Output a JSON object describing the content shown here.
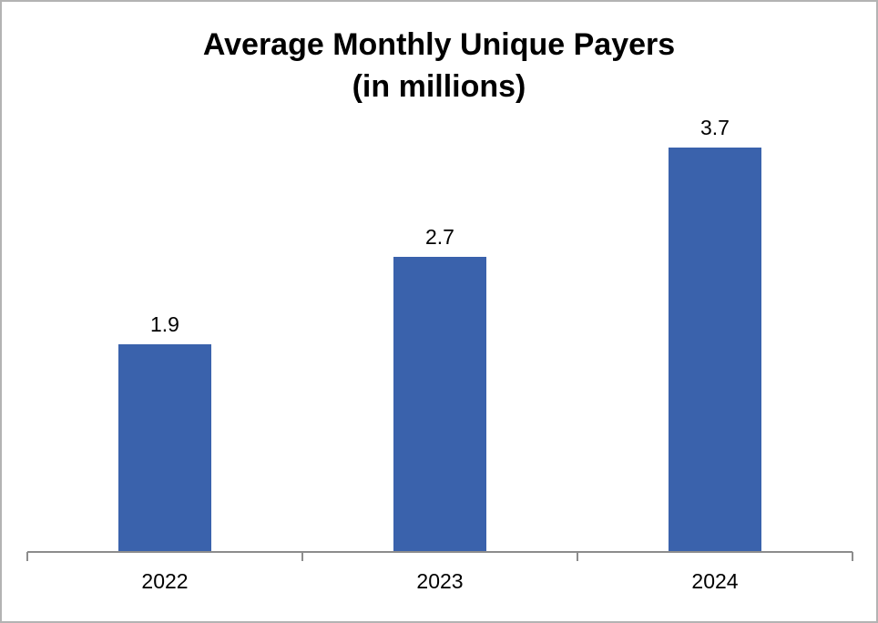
{
  "chart_data": {
    "type": "bar",
    "title_lines": [
      "Average Monthly Unique Payers",
      "(in millions)"
    ],
    "categories": [
      "2022",
      "2023",
      "2024"
    ],
    "values": [
      1.9,
      2.7,
      3.7
    ],
    "data_labels": [
      "1.9",
      "2.7",
      "3.7"
    ],
    "xlabel": "",
    "ylabel": "",
    "ylim": [
      0,
      3.8
    ],
    "grid": false,
    "legend": "none",
    "bar_color": "#3a62ac",
    "axis_color": "#8c8c8c"
  }
}
